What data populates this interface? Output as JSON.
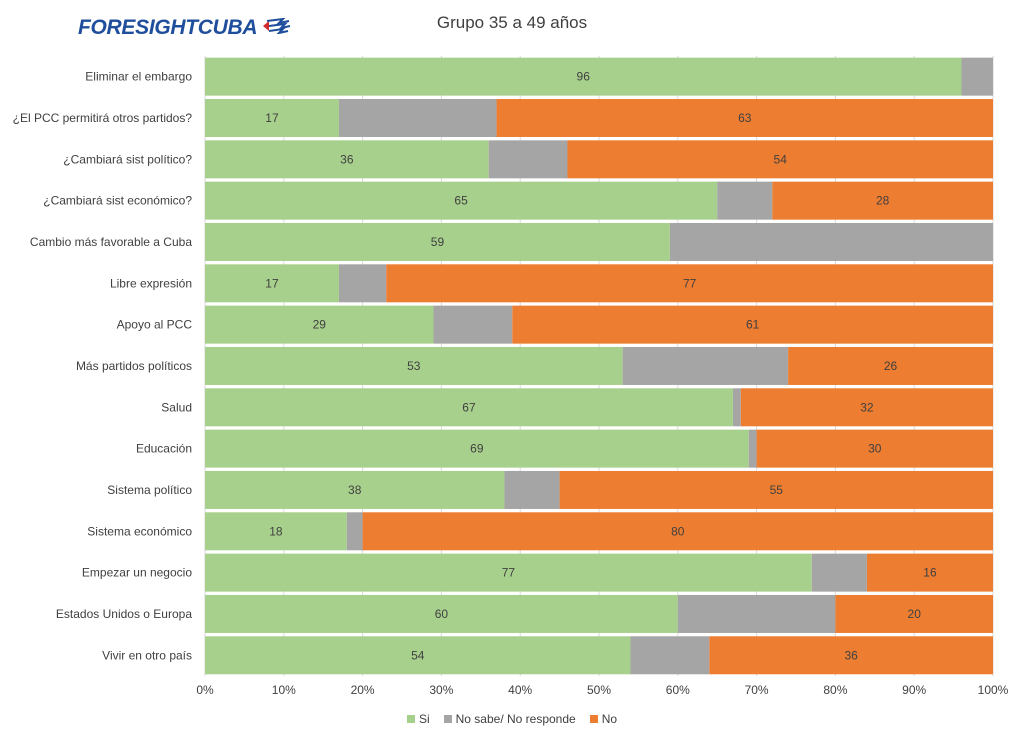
{
  "logo": {
    "text": "FORESIGHTCUBA"
  },
  "colors": {
    "si": "#a8d08d",
    "ns": "#a5a5a5",
    "no": "#ed7d31",
    "grid": "#d9d9d9",
    "text": "#404040"
  },
  "chart_data": {
    "type": "bar",
    "orientation": "horizontal",
    "stacked": "percent",
    "title": "Grupo 35 a 49 años",
    "categories": [
      "Eliminar el embargo",
      "¿El PCC permitirá otros partidos?",
      "¿Cambiará sist político?",
      "¿Cambiará sist económico?",
      "Cambio más favorable a Cuba",
      "Libre expresión",
      "Apoyo al PCC",
      "Más partidos políticos",
      "Salud",
      "Educación",
      "Sistema político",
      "Sistema económico",
      "Empezar un negocio",
      "Estados Unidos o Europa",
      "Vivir en otro país"
    ],
    "series": [
      {
        "name": "Si",
        "key": "si",
        "values": [
          96,
          17,
          36,
          65,
          59,
          17,
          29,
          53,
          67,
          69,
          38,
          18,
          77,
          60,
          54
        ],
        "labels": [
          "96",
          "17",
          "36",
          "65",
          "59",
          "17",
          "29",
          "53",
          "67",
          "69",
          "38",
          "18",
          "77",
          "60",
          "54"
        ]
      },
      {
        "name": "No sabe/ No responde",
        "key": "ns",
        "values": [
          4,
          20,
          10,
          7,
          41,
          6,
          10,
          21,
          1,
          1,
          7,
          2,
          7,
          20,
          10
        ],
        "labels": [
          "",
          "",
          "",
          "",
          "",
          "",
          "",
          "",
          "",
          "",
          "",
          "",
          "",
          "",
          ""
        ]
      },
      {
        "name": "No",
        "key": "no",
        "values": [
          0,
          63,
          54,
          28,
          0,
          77,
          61,
          26,
          32,
          30,
          55,
          80,
          16,
          20,
          36
        ],
        "labels": [
          "",
          "63",
          "54",
          "28",
          "",
          "77",
          "61",
          "26",
          "32",
          "30",
          "55",
          "80",
          "16",
          "20",
          "36"
        ]
      }
    ],
    "xticks": [
      "0%",
      "10%",
      "20%",
      "30%",
      "40%",
      "50%",
      "60%",
      "70%",
      "80%",
      "90%",
      "100%"
    ],
    "xlim": [
      0,
      100
    ],
    "grid": true,
    "legend": "bottom"
  }
}
